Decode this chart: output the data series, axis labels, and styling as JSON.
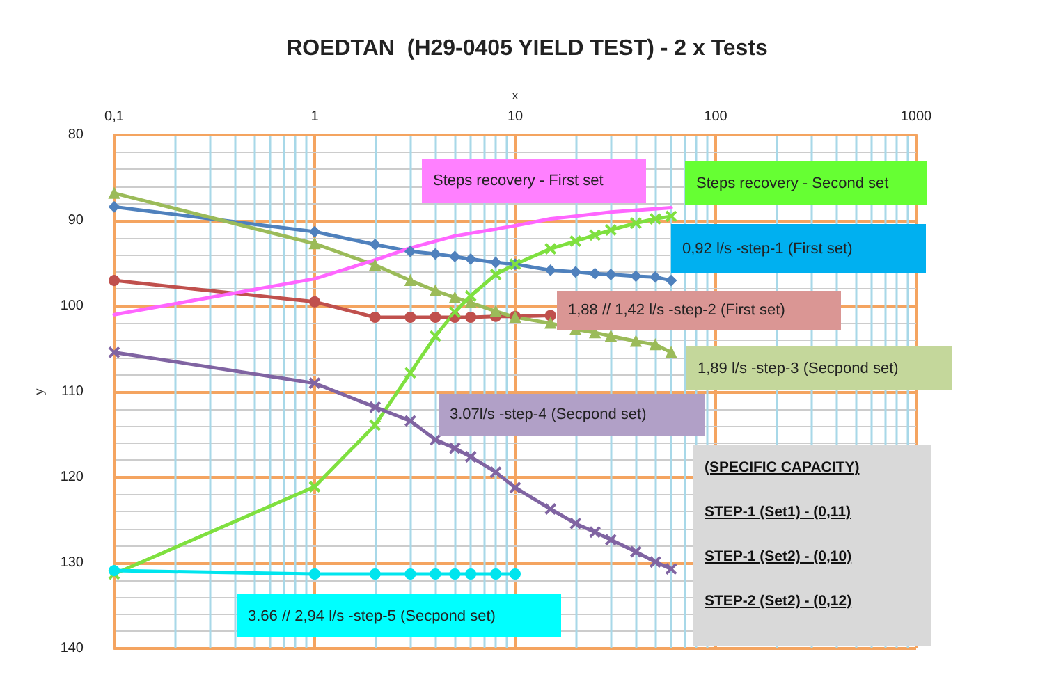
{
  "chart_data": {
    "type": "line",
    "title": "ROEDTAN  (H29-0405 YIELD TEST) - 2 x Tests",
    "xlabel": "x",
    "ylabel": "y",
    "log": "x",
    "grid": true,
    "legend": false,
    "xlim": [
      0.1,
      1000
    ],
    "xticks": [
      {
        "value": 0.1,
        "label": "0,1"
      },
      {
        "value": 0.2,
        "label": null
      },
      {
        "value": 0.3,
        "label": null
      },
      {
        "value": 0.4,
        "label": null
      },
      {
        "value": 0.5,
        "label": null
      },
      {
        "value": 0.6,
        "label": null
      },
      {
        "value": 0.7,
        "label": null
      },
      {
        "value": 0.8,
        "label": null
      },
      {
        "value": 0.9,
        "label": null
      },
      1,
      {
        "value": 2,
        "label": null
      },
      {
        "value": 3,
        "label": null
      },
      {
        "value": 4,
        "label": null
      },
      {
        "value": 5,
        "label": null
      },
      {
        "value": 6,
        "label": null
      },
      {
        "value": 7,
        "label": null
      },
      {
        "value": 8,
        "label": null
      },
      {
        "value": 9,
        "label": null
      },
      10,
      {
        "value": 20,
        "label": null
      },
      {
        "value": 30,
        "label": null
      },
      {
        "value": 40,
        "label": null
      },
      {
        "value": 50,
        "label": null
      },
      {
        "value": 60,
        "label": null
      },
      {
        "value": 70,
        "label": null
      },
      {
        "value": 80,
        "label": null
      },
      {
        "value": 90,
        "label": null
      },
      100,
      {
        "value": 200,
        "label": null
      },
      {
        "value": 300,
        "label": null
      },
      {
        "value": 400,
        "label": null
      },
      {
        "value": 500,
        "label": null
      },
      {
        "value": 600,
        "label": null
      },
      {
        "value": 700,
        "label": null
      },
      {
        "value": 800,
        "label": null
      },
      {
        "value": 900,
        "label": null
      },
      1000
    ],
    "ylim": [
      140,
      80
    ],
    "yticks": [
      80,
      90,
      100,
      110,
      120,
      130,
      140
    ],
    "annotations": [
      "(SPECIFIC CAPACITY)",
      "STEP-1 (Set1)  -  (0,11)",
      "STEP-1 (Set2)  -  (0,10)",
      "STEP-2 (Set2)  - (0,12)"
    ],
    "series": [
      {
        "name": "0,92 l/s -step-1 (First set)",
        "color": "#4f81bd",
        "marker": "diamond",
        "x": [
          0.1,
          1,
          2,
          3,
          4,
          5,
          6,
          8,
          10,
          15,
          20,
          25,
          30,
          40,
          50,
          60
        ],
        "values": [
          88.4,
          91.3,
          92.8,
          93.6,
          93.9,
          94.2,
          94.5,
          94.9,
          95.1,
          95.8,
          96.0,
          96.2,
          96.3,
          96.5,
          96.6,
          97.0
        ]
      },
      {
        "name": "1,88 // 1,42  l/s -step-2 (First set)",
        "color": "#c0504d",
        "marker": "circle",
        "x": [
          0.1,
          1,
          2,
          3,
          4,
          5,
          6,
          8,
          10,
          15
        ],
        "values": [
          97.0,
          99.5,
          101.3,
          101.3,
          101.3,
          101.3,
          101.3,
          101.2,
          101.2,
          101.1
        ]
      },
      {
        "name": "1,89 l/s -step-3 (Secpond set)",
        "color": "#9bbb59",
        "marker": "triangle",
        "x": [
          0.1,
          1,
          2,
          3,
          4,
          5,
          6,
          8,
          10,
          15,
          20,
          25,
          30,
          40,
          50,
          60
        ],
        "values": [
          86.8,
          92.7,
          95.2,
          97.0,
          98.2,
          99.0,
          99.6,
          100.6,
          101.3,
          102.0,
          102.7,
          103.1,
          103.5,
          104.1,
          104.5,
          105.4
        ]
      },
      {
        "name": "Steps recovery - First set",
        "color": "#ff66ff",
        "marker": "none",
        "x": [
          0.1,
          1,
          2,
          3,
          5,
          8,
          10,
          15,
          20,
          30,
          60
        ],
        "values": [
          101.0,
          96.8,
          94.6,
          93.2,
          91.8,
          91.0,
          90.6,
          89.8,
          89.5,
          89.0,
          88.5
        ]
      },
      {
        "name": "Steps recovery - Second set",
        "color": "#7fe03f",
        "marker": "cross",
        "x": [
          0.1,
          1,
          2,
          3,
          4,
          5,
          6,
          8,
          10,
          15,
          20,
          25,
          30,
          40,
          50,
          60
        ],
        "values": [
          131.3,
          121.1,
          113.9,
          107.8,
          103.5,
          100.7,
          98.8,
          96.3,
          95.1,
          93.3,
          92.4,
          91.7,
          91.1,
          90.3,
          89.8,
          89.5
        ]
      },
      {
        "name": "3.07l/s -step-4 (Secpond set)",
        "color": "#8064a2",
        "marker": "cross",
        "x": [
          0.1,
          1,
          2,
          3,
          4,
          5,
          6,
          8,
          10,
          15,
          20,
          25,
          30,
          40,
          50,
          60
        ],
        "values": [
          105.4,
          109.0,
          111.8,
          113.4,
          115.6,
          116.6,
          117.6,
          119.4,
          121.2,
          123.7,
          125.4,
          126.4,
          127.3,
          128.7,
          129.9,
          130.7
        ]
      },
      {
        "name": "3.66 // 2,94 l/s -step-5 (Secpond set)",
        "color": "#00e5ee",
        "marker": "circle",
        "x": [
          0.1,
          1,
          2,
          3,
          4,
          5,
          6,
          8,
          10
        ],
        "values": [
          130.9,
          131.3,
          131.3,
          131.3,
          131.3,
          131.3,
          131.3,
          131.3,
          131.3
        ]
      }
    ]
  }
}
